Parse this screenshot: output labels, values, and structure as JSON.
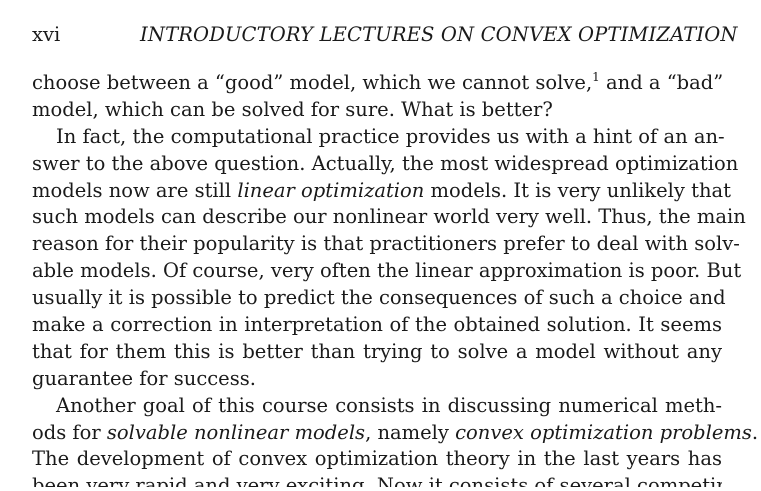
{
  "header": {
    "page_number": "xvi",
    "running_title": "INTRODUCTORY LECTURES ON CONVEX OPTIMIZATION"
  },
  "paragraphs": [
    {
      "lines": [
        [
          "choose between a “good” model, which we cannot solve,",
          "1",
          " and a “bad”"
        ],
        [
          "model, which can be solved for sure. What is better?"
        ]
      ]
    },
    {
      "lines": [
        [
          "In fact, the computational practice provides us with a hint of an an-"
        ],
        [
          "swer to the above question. Actually, the most widespread optimization"
        ],
        [
          "models now are still ",
          "linear optimization",
          " models. It is very unlikely that"
        ],
        [
          "such models can describe our nonlinear world very well. Thus, the main"
        ],
        [
          "reason for their popularity is that practitioners prefer to deal with solv-"
        ],
        [
          "able models. Of course, very often the linear approximation is poor. But"
        ],
        [
          "usually it is possible to predict the consequences of such a choice and"
        ],
        [
          "make a correction in interpretation of the obtained solution. It seems"
        ],
        [
          "that for them this is better than trying to solve a model without any"
        ],
        [
          "guarantee for success."
        ]
      ]
    },
    {
      "lines": [
        [
          "Another goal of this course consists in discussing numerical meth-"
        ],
        [
          "ods for ",
          "solvable nonlinear models",
          ", namely ",
          "convex optimization problems",
          "."
        ],
        [
          "The development of convex optimization theory in the last years has"
        ],
        [
          "been very rapid and very exciting. Now it consists of several competing"
        ]
      ]
    }
  ]
}
